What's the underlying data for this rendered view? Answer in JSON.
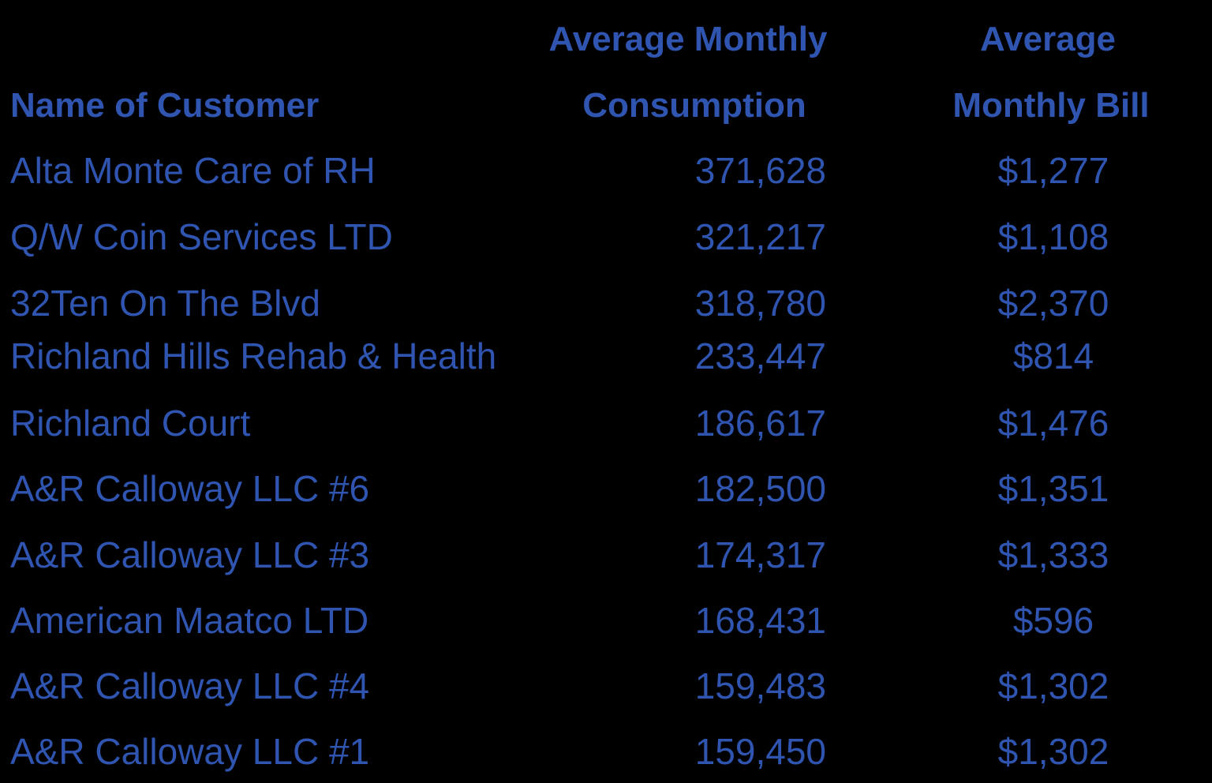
{
  "headers": {
    "name": "Name of Customer",
    "consumption_line1": "Average Monthly",
    "consumption_line2": "Consumption",
    "bill_line1": "Average",
    "bill_line2": "Monthly Bill"
  },
  "rows": [
    {
      "name": "Alta Monte Care of RH",
      "consumption": "371,628",
      "bill": "$1,277"
    },
    {
      "name": "Q/W Coin Services LTD",
      "consumption": "321,217",
      "bill": "$1,108"
    },
    {
      "name": "32Ten On The Blvd",
      "consumption": "318,780",
      "bill": "$2,370"
    },
    {
      "name": "Richland Hills Rehab & Health",
      "consumption": "233,447",
      "bill": "$814"
    },
    {
      "name": "Richland Court",
      "consumption": "186,617",
      "bill": "$1,476"
    },
    {
      "name": "A&R Calloway LLC #6",
      "consumption": "182,500",
      "bill": "$1,351"
    },
    {
      "name": "A&R Calloway LLC #3",
      "consumption": "174,317",
      "bill": "$1,333"
    },
    {
      "name": "American Maatco LTD",
      "consumption": "168,431",
      "bill": "$596"
    },
    {
      "name": "A&R Calloway LLC #4",
      "consumption": "159,483",
      "bill": "$1,302"
    },
    {
      "name": "A&R Calloway LLC #1",
      "consumption": "159,450",
      "bill": "$1,302"
    }
  ],
  "colors": {
    "background": "#000000",
    "text": "#2f55b1"
  }
}
